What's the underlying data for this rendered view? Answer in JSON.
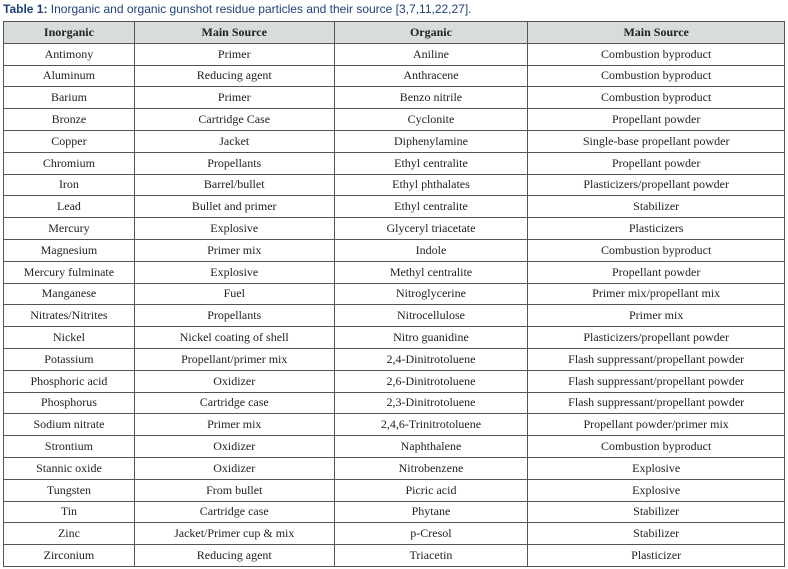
{
  "caption": {
    "label": "Table 1:",
    "text": " Inorganic and organic gunshot residue particles and their source [3,7,11,22,27]."
  },
  "headers": [
    "Inorganic",
    "Main Source",
    "Organic",
    "Main Source"
  ],
  "rows": [
    [
      "Antimony",
      "Primer",
      "Aniline",
      "Combustion byproduct"
    ],
    [
      "Aluminum",
      "Reducing agent",
      "Anthracene",
      "Combustion byproduct"
    ],
    [
      "Barium",
      "Primer",
      "Benzo nitrile",
      "Combustion byproduct"
    ],
    [
      "Bronze",
      "Cartridge Case",
      "Cyclonite",
      "Propellant powder"
    ],
    [
      "Copper",
      "Jacket",
      "Diphenylamine",
      "Single-base propellant powder"
    ],
    [
      "Chromium",
      "Propellants",
      "Ethyl centralite",
      "Propellant powder"
    ],
    [
      "Iron",
      "Barrel/bullet",
      "Ethyl phthalates",
      "Plasticizers/propellant powder"
    ],
    [
      "Lead",
      "Bullet and primer",
      "Ethyl centralite",
      "Stabilizer"
    ],
    [
      "Mercury",
      "Explosive",
      "Glyceryl triacetate",
      "Plasticizers"
    ],
    [
      "Magnesium",
      "Primer mix",
      "Indole",
      "Combustion byproduct"
    ],
    [
      "Mercury fulminate",
      "Explosive",
      "Methyl centralite",
      "Propellant powder"
    ],
    [
      "Manganese",
      "Fuel",
      "Nitroglycerine",
      "Primer mix/propellant mix"
    ],
    [
      "Nitrates/Nitrites",
      "Propellants",
      "Nitrocellulose",
      "Primer mix"
    ],
    [
      "Nickel",
      "Nickel coating of shell",
      "Nitro guanidine",
      "Plasticizers/propellant powder"
    ],
    [
      "Potassium",
      "Propellant/primer mix",
      "2,4-Dinitrotoluene",
      "Flash suppressant/propellant powder"
    ],
    [
      "Phosphoric acid",
      "Oxidizer",
      "2,6-Dinitrotoluene",
      "Flash suppressant/propellant powder"
    ],
    [
      "Phosphorus",
      "Cartridge case",
      "2,3-Dinitrotoluene",
      "Flash suppressant/propellant powder"
    ],
    [
      "Sodium nitrate",
      "Primer mix",
      "2,4,6-Trinitrotoluene",
      "Propellant powder/primer mix"
    ],
    [
      "Strontium",
      "Oxidizer",
      "Naphthalene",
      "Combustion byproduct"
    ],
    [
      "Stannic oxide",
      "Oxidizer",
      "Nitrobenzene",
      "Explosive"
    ],
    [
      "Tungsten",
      "From bullet",
      "Picric acid",
      "Explosive"
    ],
    [
      "Tin",
      "Cartridge case",
      "Phytane",
      "Stabilizer"
    ],
    [
      "Zinc",
      "Jacket/Primer cup & mix",
      "p-Cresol",
      "Stabilizer"
    ],
    [
      "Zirconium",
      "Reducing agent",
      "Triacetin",
      "Plasticizer"
    ]
  ]
}
